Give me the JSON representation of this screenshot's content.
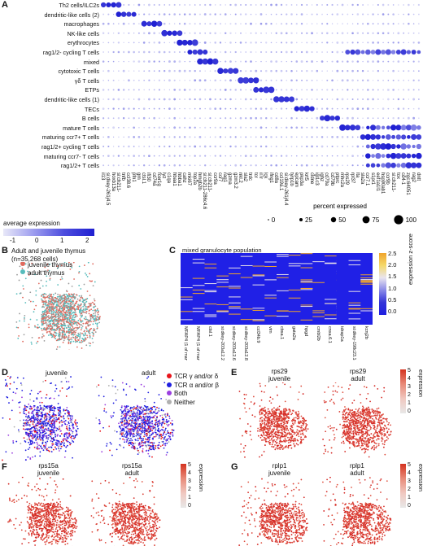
{
  "panelA": {
    "label": "A",
    "cell_types": [
      "Th2 cells/ILC2s",
      "dendritic-like cells (2)",
      "macrophages",
      "NK-like cells",
      "erythrocytes",
      "rag1/2- cycling T cells",
      "mixed",
      "cytotoxic T cells",
      "γδ T cells",
      "ETPs",
      "dendritic-like cells (1)",
      "TECs",
      "B cells",
      "mature T cells",
      "maturing ccr7+ T cells",
      "rag1/2+ cycling  T cells",
      "maturing ccr7- T cells",
      "rag1/2+ T cells"
    ],
    "x_genes": [
      "il13",
      "si:dkey-261j4.5",
      "hoxb13a",
      "si:ch211-",
      "tnfb",
      "ccl38.6",
      "pfn1",
      "grn",
      "ctsl.1",
      "ifi30",
      "cd74a",
      "fcer1g",
      "lyz",
      "c1qa",
      "hbaa1",
      "hbba1",
      "cahz",
      "mki67",
      "top2a",
      "hmgb2b",
      "si:ch211-286c4.6",
      "si:ch211-",
      "ccr9a",
      "ccr7",
      "rag1",
      "gzma",
      "gzm3.2",
      "nkl.2",
      "sla2",
      "trdc",
      "tcr",
      "il7r",
      "lck",
      "ifng1",
      "cd8a",
      "ccl19a.1",
      "si:dkey-261j4.4",
      "tyrp1b",
      "epcam",
      "pkp3a",
      "krt5",
      "cldne",
      "igl1c3",
      "ighz",
      "cd79a",
      "cd79b",
      "ptprc",
      "mhc2a",
      "rps29",
      "rpl37",
      "lta",
      "sla2a",
      "ccr7.1",
      "s1pr1",
      "eef1a1l1",
      "hsp90ab1",
      "ccr9b",
      "si:ch211-",
      "tox",
      "cd4-1",
      "zgc:64051",
      "rag2",
      "dntt"
    ],
    "legend_title": "average expression",
    "legend_ticks": [
      "-1",
      "0",
      "1",
      "2"
    ],
    "size_title": "percent expressed",
    "size_ticks": [
      "0",
      "25",
      "50",
      "75",
      "100"
    ]
  },
  "panelB": {
    "label": "B",
    "title_line1": "Adult and juvenile thymus",
    "title_line2": "(n=35,268 cells)",
    "legend": [
      "juvenile thymus",
      "adult thymus"
    ],
    "colors": {
      "juvenile": "#e06a5e",
      "adult": "#56bcbc",
      "grey": "#9a9a9a"
    }
  },
  "panelC": {
    "label": "C",
    "title": "mixed granulocyte population",
    "genes": [
      "MFAP4 (1 of many).8",
      "MFAP4 (1 of many).7",
      "ctsl.1",
      "si:dkey-203a12.2",
      "si:dkey-203a12.6",
      "si:dkey-203a12.8",
      "ccl34b.9",
      "vim",
      "cbsa.1",
      "gata2a",
      "hpgd",
      "cmbl2b",
      "cnxa.6.1",
      "tdrap1a",
      "si:dkey-198c23.14",
      "kcnj2b"
    ],
    "colorbar_title": "expression z-score",
    "colorbar_ticks": [
      "2.5",
      "2.0",
      "1.5",
      "1.0",
      "0.5",
      "0.0"
    ]
  },
  "panelD": {
    "label": "D",
    "titles": [
      "juvenile",
      "adult"
    ],
    "legend": [
      "TCR γ and/or δ",
      "TCR α and/or β",
      "Both",
      "Neither"
    ],
    "colors": [
      "#e8141a",
      "#1f1fe0",
      "#9b3fe0",
      "#b0b0b0"
    ]
  },
  "panelE": {
    "label": "E",
    "gene": "rps29",
    "titles": [
      "juvenile",
      "adult"
    ]
  },
  "panelF": {
    "label": "F",
    "gene": "rps15a",
    "titles": [
      "juvenile",
      "adult"
    ]
  },
  "panelG": {
    "label": "G",
    "gene": "rplp1",
    "titles": [
      "juvenile",
      "adult"
    ]
  },
  "expr_legend": {
    "title": "expression",
    "ticks": [
      "5",
      "4",
      "3",
      "2",
      "1",
      "0"
    ]
  }
}
